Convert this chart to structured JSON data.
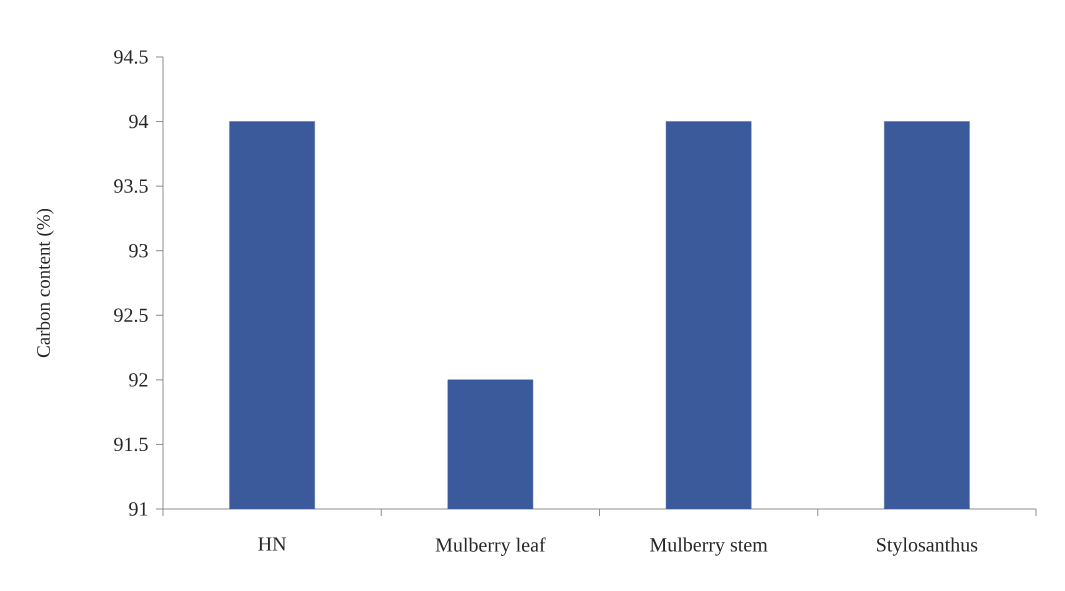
{
  "chart_data": {
    "type": "bar",
    "ylabel": "Carbon content (%)",
    "categories": [
      "HN",
      "Mulberry leaf",
      "Mulberry stem",
      "Stylosanthus"
    ],
    "values": [
      94,
      92,
      94,
      94
    ],
    "color": "#3a5a9c",
    "ylim": [
      91,
      94.5
    ],
    "yticks": [
      91,
      91.5,
      92,
      92.5,
      93,
      93.5,
      94,
      94.5
    ]
  }
}
